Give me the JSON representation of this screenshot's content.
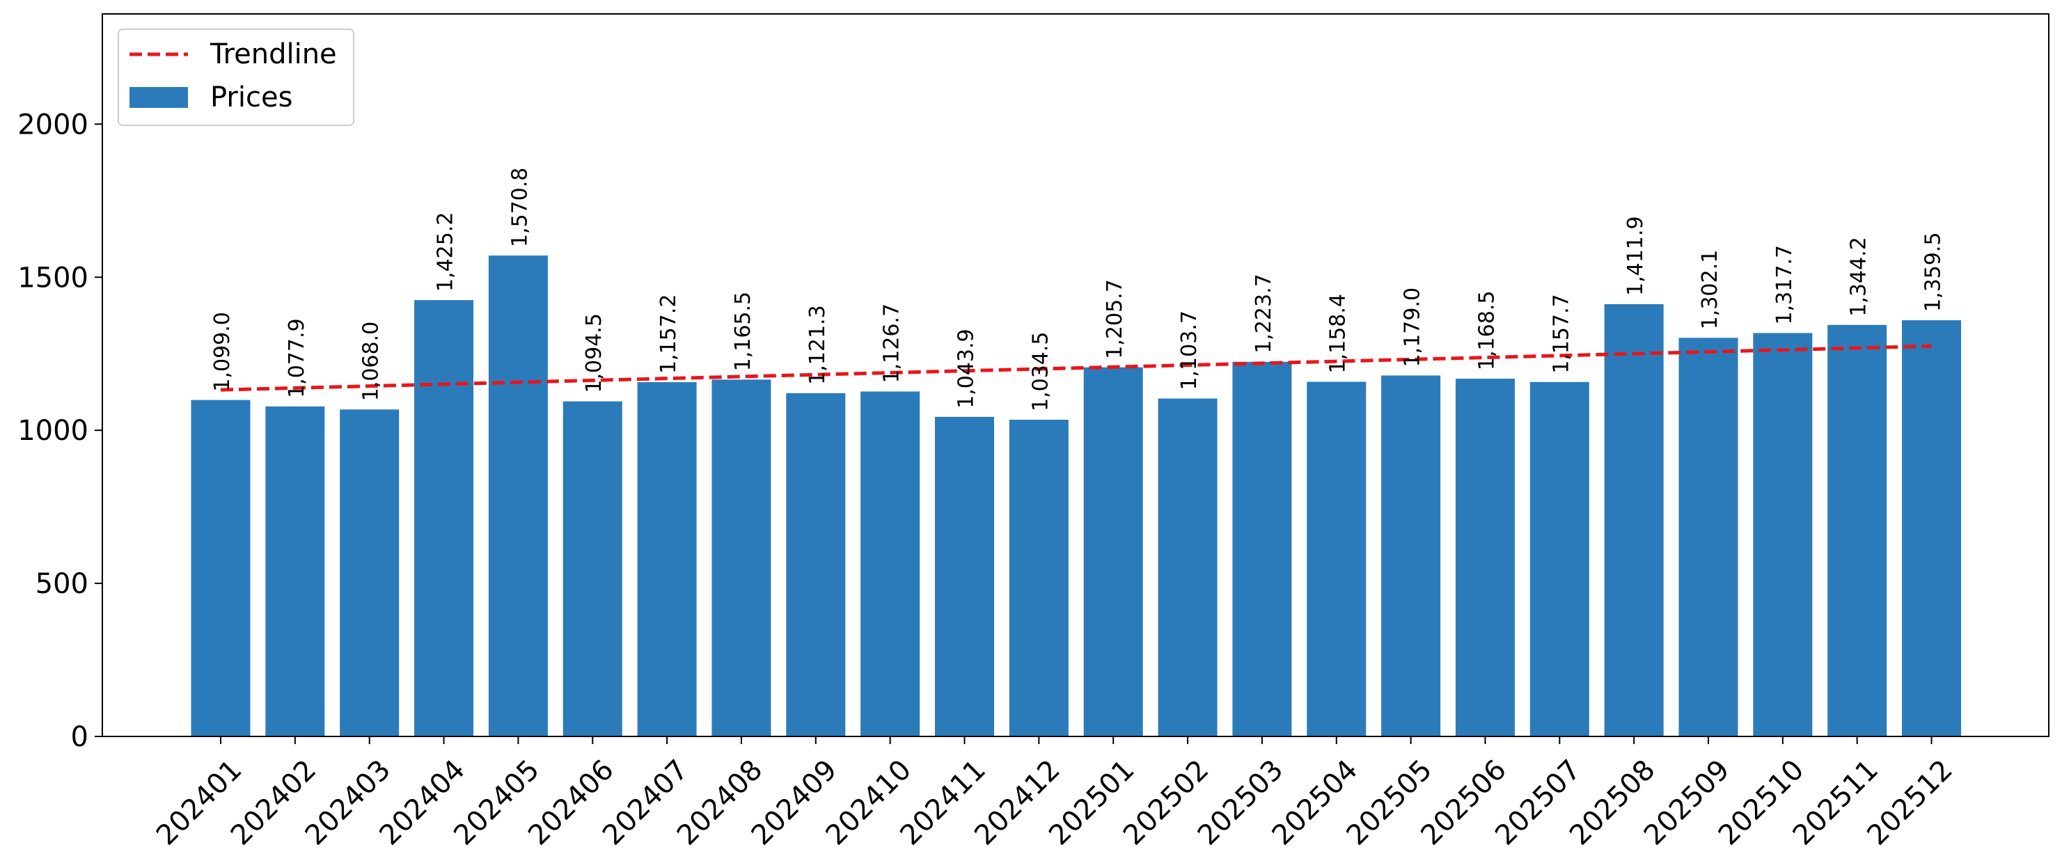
{
  "chart_data": {
    "type": "bar",
    "categories": [
      "202401",
      "202402",
      "202403",
      "202404",
      "202405",
      "202406",
      "202407",
      "202408",
      "202409",
      "202410",
      "202411",
      "202412",
      "202501",
      "202502",
      "202503",
      "202504",
      "202505",
      "202506",
      "202507",
      "202508",
      "202509",
      "202510",
      "202511",
      "202512"
    ],
    "series": [
      {
        "name": "Prices",
        "type": "bar",
        "color": "#2b7bba",
        "values": [
          1099.0,
          1077.9,
          1068.0,
          1425.2,
          1570.8,
          1094.5,
          1157.2,
          1165.5,
          1121.3,
          1126.7,
          1043.9,
          1034.5,
          1205.7,
          1103.7,
          1223.7,
          1158.4,
          1179.0,
          1168.5,
          1157.7,
          1411.9,
          1302.1,
          1317.7,
          1344.2,
          1359.5
        ],
        "data_labels": [
          "1,099.0",
          "1,077.9",
          "1,068.0",
          "1,425.2",
          "1,570.8",
          "1,094.5",
          "1,157.2",
          "1,165.5",
          "1,121.3",
          "1,126.7",
          "1,043.9",
          "1,034.5",
          "1,205.7",
          "1,103.7",
          "1,223.7",
          "1,158.4",
          "1,179.0",
          "1,168.5",
          "1,157.7",
          "1,411.9",
          "1,302.1",
          "1,317.7",
          "1,344.2",
          "1,359.5"
        ]
      },
      {
        "name": "Trendline",
        "type": "line",
        "style": "dashed",
        "color": "#e8161b",
        "start": 1132,
        "end": 1275
      }
    ],
    "ylim": [
      0,
      2360
    ],
    "yticks": [
      0,
      500,
      1000,
      1500,
      2000
    ],
    "legend": {
      "position": "top-left",
      "entries": [
        "Trendline",
        "Prices"
      ]
    },
    "grid": false
  }
}
